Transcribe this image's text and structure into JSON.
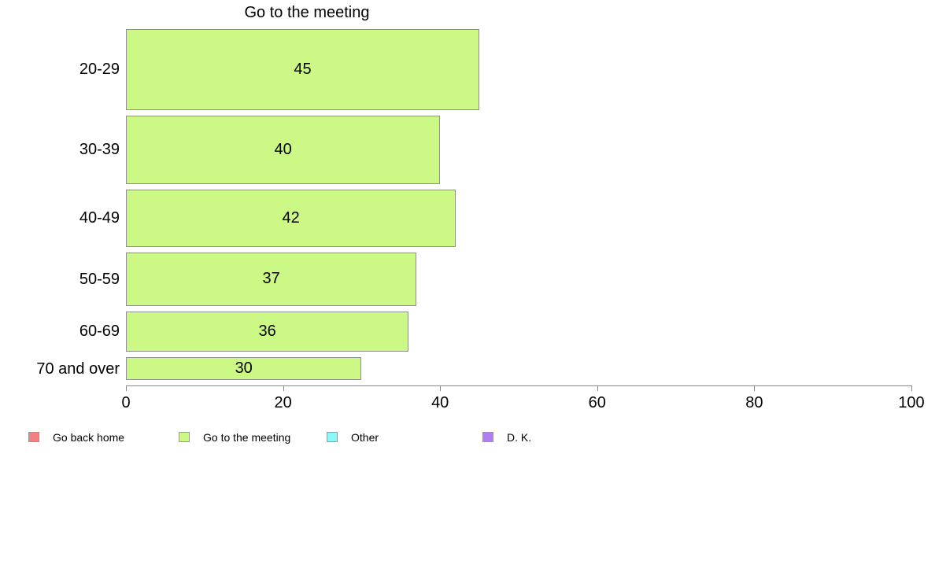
{
  "chart_data": {
    "type": "bar",
    "orientation": "horizontal",
    "title": "Go to the meeting",
    "categories": [
      "20-29",
      "30-39",
      "40-49",
      "50-59",
      "60-69",
      "70 and over"
    ],
    "values": [
      45,
      40,
      42,
      37,
      36,
      30
    ],
    "bar_relative_heights": [
      0.251,
      0.211,
      0.177,
      0.165,
      0.125,
      0.071
    ],
    "xlabel": "",
    "ylabel": "",
    "xlim": [
      0,
      100
    ],
    "x_ticks": [
      0,
      20,
      40,
      60,
      80,
      100
    ],
    "grid": "off",
    "value_labels_shown": true,
    "bar_color": "#CCF985",
    "bar_border_color": "#8F8F8F",
    "axis_color": "#888888",
    "legend_position": "bottom"
  },
  "legend": {
    "items": [
      {
        "label": "Go back home",
        "color": "#F48080"
      },
      {
        "label": "Go to the meeting",
        "color": "#CCF985"
      },
      {
        "label": "Other",
        "color": "#8BF8F8"
      },
      {
        "label": "D. K.",
        "color": "#B27DF2"
      }
    ]
  }
}
